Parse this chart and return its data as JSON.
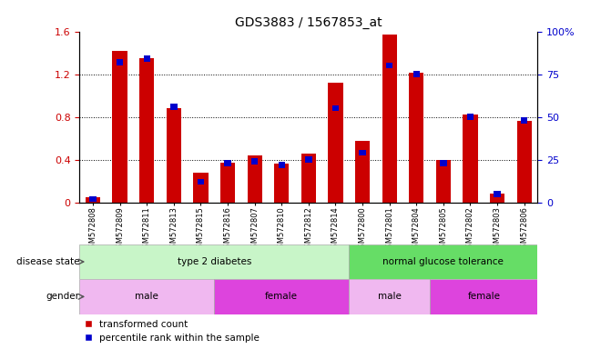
{
  "title": "GDS3883 / 1567853_at",
  "samples": [
    "GSM572808",
    "GSM572809",
    "GSM572811",
    "GSM572813",
    "GSM572815",
    "GSM572816",
    "GSM572807",
    "GSM572810",
    "GSM572812",
    "GSM572814",
    "GSM572800",
    "GSM572801",
    "GSM572804",
    "GSM572805",
    "GSM572802",
    "GSM572803",
    "GSM572806"
  ],
  "red_values": [
    0.05,
    1.42,
    1.35,
    0.88,
    0.28,
    0.37,
    0.44,
    0.36,
    0.46,
    1.12,
    0.58,
    1.57,
    1.21,
    0.4,
    0.82,
    0.08,
    0.76
  ],
  "blue_values_pct": [
    2,
    82,
    84,
    56,
    12,
    23,
    24,
    22,
    25,
    55,
    29,
    80,
    75,
    23,
    50,
    5,
    48
  ],
  "disease_state": [
    {
      "label": "type 2 diabetes",
      "start": 0,
      "end": 10,
      "color": "#c8f5c8"
    },
    {
      "label": "normal glucose tolerance",
      "start": 10,
      "end": 17,
      "color": "#66dd66"
    }
  ],
  "gender": [
    {
      "label": "male",
      "start": 0,
      "end": 5,
      "color": "#f0b8f0"
    },
    {
      "label": "female",
      "start": 5,
      "end": 10,
      "color": "#dd44dd"
    },
    {
      "label": "male",
      "start": 10,
      "end": 13,
      "color": "#f0b8f0"
    },
    {
      "label": "female",
      "start": 13,
      "end": 17,
      "color": "#dd44dd"
    }
  ],
  "ylim_left": [
    0,
    1.6
  ],
  "ylim_right": [
    0,
    100
  ],
  "yticks_left": [
    0,
    0.4,
    0.8,
    1.2,
    1.6
  ],
  "yticks_right": [
    0,
    25,
    50,
    75,
    100
  ],
  "bar_width": 0.55,
  "red_color": "#cc0000",
  "blue_color": "#0000cc",
  "disease_state_label": "disease state",
  "gender_label": "gender",
  "legend_red": "transformed count",
  "legend_blue": "percentile rank within the sample"
}
